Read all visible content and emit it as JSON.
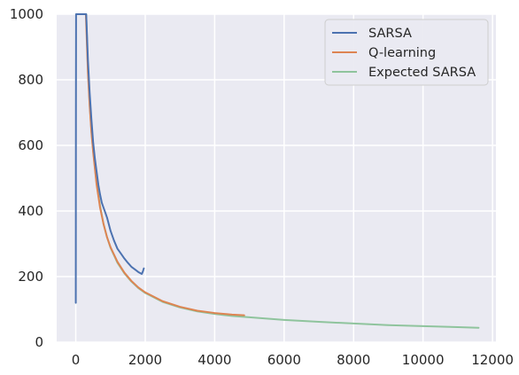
{
  "chart_data": {
    "type": "line",
    "title": "",
    "xlabel": "",
    "ylabel": "",
    "xlim": [
      -550,
      12100
    ],
    "ylim": [
      0,
      1000
    ],
    "xticks": [
      0,
      2000,
      4000,
      6000,
      8000,
      10000,
      12000
    ],
    "yticks": [
      0,
      200,
      400,
      600,
      800,
      1000
    ],
    "grid": true,
    "legend_position": "top-right",
    "series": [
      {
        "name": "SARSA",
        "color": "#4c72b0",
        "x": [
          0,
          2,
          4,
          8,
          300,
          350,
          400,
          450,
          500,
          550,
          600,
          650,
          700,
          750,
          800,
          850,
          900,
          950,
          1000,
          1100,
          1200,
          1300,
          1400,
          1500,
          1600,
          1700,
          1800,
          1900,
          1930,
          1960
        ],
        "y": [
          120,
          400,
          700,
          1000,
          1000,
          860,
          760,
          680,
          610,
          560,
          520,
          480,
          450,
          425,
          410,
          395,
          380,
          360,
          340,
          310,
          285,
          270,
          255,
          242,
          230,
          222,
          214,
          208,
          215,
          225
        ]
      },
      {
        "name": "Q-learning",
        "color": "#dd8452",
        "x": [
          290,
          350,
          400,
          450,
          500,
          600,
          700,
          800,
          900,
          1000,
          1200,
          1400,
          1600,
          1800,
          2000,
          2500,
          3000,
          3500,
          4000,
          4500,
          4850
        ],
        "y": [
          1000,
          820,
          720,
          640,
          580,
          480,
          410,
          360,
          320,
          290,
          245,
          212,
          187,
          167,
          152,
          125,
          108,
          96,
          89,
          84,
          82
        ]
      },
      {
        "name": "Expected SARSA",
        "color": "#8fc49d",
        "x": [
          300,
          350,
          400,
          450,
          500,
          600,
          700,
          800,
          900,
          1000,
          1200,
          1400,
          1600,
          1800,
          2000,
          2500,
          3000,
          3500,
          4000,
          4500,
          5000,
          6000,
          7000,
          8000,
          9000,
          10000,
          11000,
          11600
        ],
        "y": [
          1000,
          830,
          725,
          645,
          585,
          485,
          415,
          360,
          320,
          288,
          242,
          210,
          185,
          165,
          150,
          123,
          106,
          94,
          86,
          80,
          76,
          68,
          62,
          57,
          52,
          49,
          46,
          44
        ]
      }
    ]
  }
}
